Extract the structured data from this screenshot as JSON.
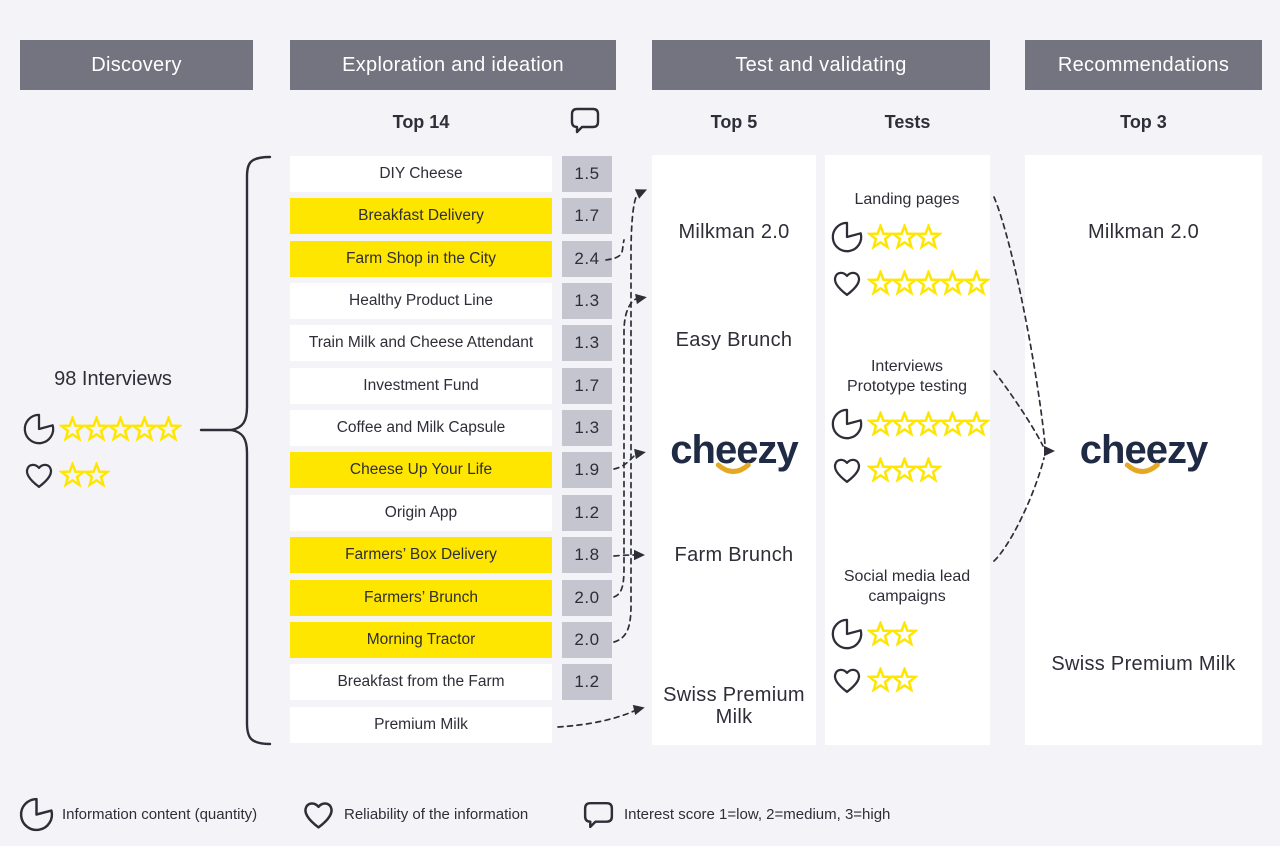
{
  "palette": {
    "background": "#f4f4f8",
    "dark": "#2e2e38",
    "gray": "#747480",
    "yellow": "#ffe600",
    "score_bg": "#c5c5cf",
    "panel": "#ffffff",
    "navy": "#1f2a44",
    "gold": "#e5a823"
  },
  "stages": [
    {
      "label": "Discovery"
    },
    {
      "label": "Exploration and ideation"
    },
    {
      "label": "Test and validating"
    },
    {
      "label": "Recommendations"
    }
  ],
  "column_labels": {
    "exploration": "Top 14",
    "test": "Top 5",
    "tests": "Tests",
    "recommendations": "Top 3"
  },
  "discovery": {
    "interviews": "98 Interviews",
    "quantity_stars": 5,
    "reliability_stars": 2
  },
  "ideas": {
    "items": [
      {
        "label": "DIY Cheese",
        "score": "1.5",
        "highlight": false
      },
      {
        "label": "Breakfast Delivery",
        "score": "1.7",
        "highlight": true
      },
      {
        "label": "Farm Shop in the City",
        "score": "2.4",
        "highlight": true
      },
      {
        "label": "Healthy Product Line",
        "score": "1.3",
        "highlight": false
      },
      {
        "label": "Train Milk and Cheese Attendant",
        "score": "1.3",
        "highlight": false
      },
      {
        "label": "Investment Fund",
        "score": "1.7",
        "highlight": false
      },
      {
        "label": "Coffee and Milk Capsule",
        "score": "1.3",
        "highlight": false
      },
      {
        "label": "Cheese Up Your Life",
        "score": "1.9",
        "highlight": true
      },
      {
        "label": "Origin App",
        "score": "1.2",
        "highlight": false
      },
      {
        "label": "Farmers’ Box Delivery",
        "score": "1.8",
        "highlight": true
      },
      {
        "label": "Farmers’ Brunch",
        "score": "2.0",
        "highlight": true
      },
      {
        "label": "Morning Tractor",
        "score": "2.0",
        "highlight": true
      },
      {
        "label": "Breakfast from the Farm",
        "score": "1.2",
        "highlight": false
      },
      {
        "label": "Premium Milk",
        "score": null,
        "highlight": false
      }
    ]
  },
  "top5": {
    "items": [
      {
        "label": "Milkman 2.0",
        "logo": false
      },
      {
        "label": "Easy Brunch",
        "logo": false
      },
      {
        "label": "cheezy",
        "logo": true
      },
      {
        "label": "Farm Brunch",
        "logo": false
      },
      {
        "label": "Swiss Premium Milk",
        "logo": false
      }
    ]
  },
  "tests": {
    "blocks": [
      {
        "title": [
          "Landing pages"
        ],
        "quantity_stars": 3,
        "reliability_stars": 5
      },
      {
        "title": [
          "Interviews",
          "Prototype testing"
        ],
        "quantity_stars": 5,
        "reliability_stars": 3
      },
      {
        "title": [
          "Social media lead",
          "campaigns"
        ],
        "quantity_stars": 2,
        "reliability_stars": 2
      }
    ]
  },
  "recommendations": {
    "items": [
      {
        "label": "Milkman 2.0",
        "logo": false
      },
      {
        "label": "cheezy",
        "logo": true
      },
      {
        "label": "Swiss Premium Milk",
        "logo": false
      }
    ]
  },
  "legend": {
    "items": [
      {
        "icon": "pie-chart",
        "label": "Information content (quantity)"
      },
      {
        "icon": "heart",
        "label": "Reliability of the information"
      },
      {
        "icon": "speech-bubble",
        "label": "Interest score 1=low, 2=medium, 3=high"
      }
    ]
  }
}
